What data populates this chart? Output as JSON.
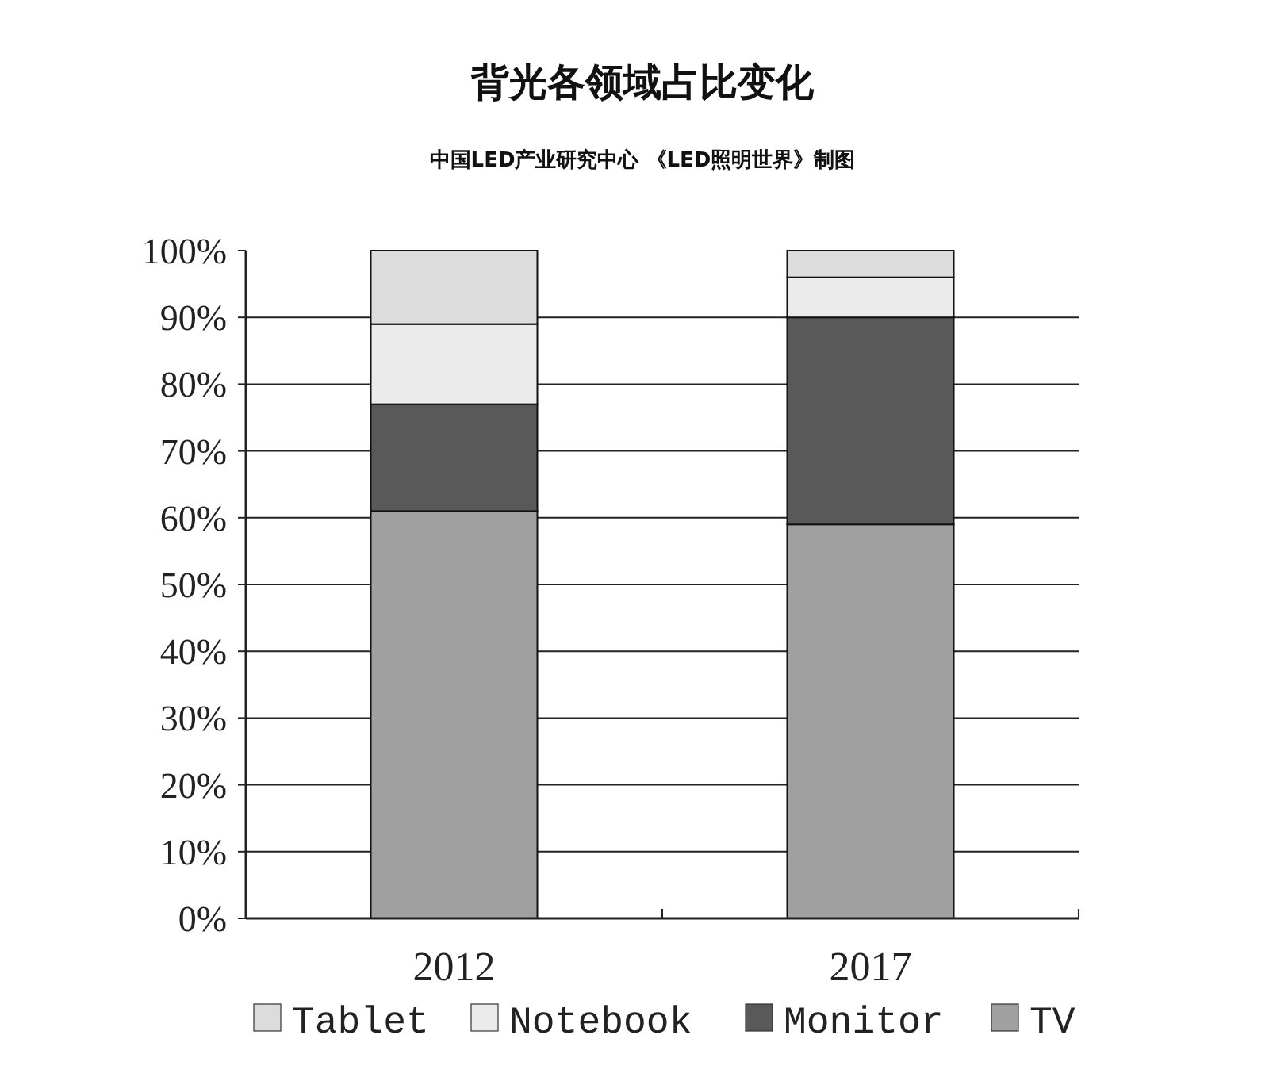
{
  "chart_data": {
    "type": "bar",
    "title": "背光各领域占比变化",
    "subtitle": "中国LED产业研究中心 《LED照明世界》制图",
    "categories": [
      "2012",
      "2017"
    ],
    "stacked": true,
    "series": [
      {
        "name": "TV",
        "color": "#a0a0a0",
        "values": [
          61,
          59
        ]
      },
      {
        "name": "Monitor",
        "color": "#595959",
        "values": [
          16,
          31
        ]
      },
      {
        "name": "Notebook",
        "color": "#ebebeb",
        "values": [
          12,
          6
        ]
      },
      {
        "name": "Tablet",
        "color": "#dcdcdc",
        "values": [
          11,
          4
        ]
      }
    ],
    "ylim": [
      0,
      100
    ],
    "yticks": [
      {
        "value": 0,
        "label": "0%"
      },
      {
        "value": 10,
        "label": "10%"
      },
      {
        "value": 20,
        "label": "20%"
      },
      {
        "value": 30,
        "label": "30%"
      },
      {
        "value": 40,
        "label": "40%"
      },
      {
        "value": 50,
        "label": "50%"
      },
      {
        "value": 60,
        "label": "60%"
      },
      {
        "value": 70,
        "label": "70%"
      },
      {
        "value": 80,
        "label": "80%"
      },
      {
        "value": 90,
        "label": "90%"
      },
      {
        "value": 100,
        "label": "100%"
      }
    ],
    "grid": "y",
    "legend": "bottom"
  }
}
